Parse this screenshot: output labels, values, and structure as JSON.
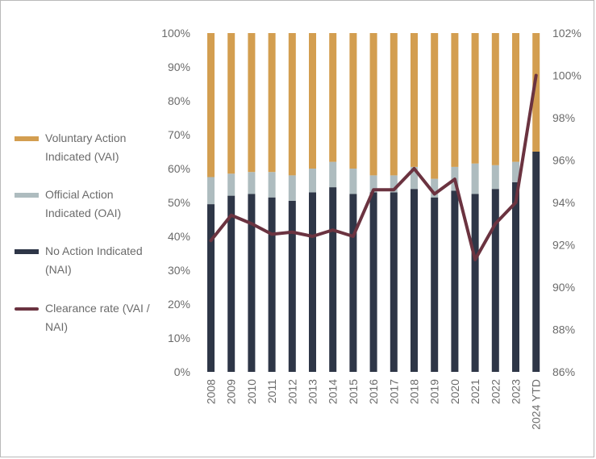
{
  "chart_data": {
    "type": "bar",
    "stacked": true,
    "categories": [
      "2008",
      "2009",
      "2010",
      "2011",
      "2012",
      "2013",
      "2014",
      "2015",
      "2016",
      "2017",
      "2018",
      "2019",
      "2020",
      "2021",
      "2022",
      "2023",
      "2024 YTD"
    ],
    "series": [
      {
        "name": "No Action Indicated (NAI)",
        "color": "#2e3647",
        "values": [
          49.5,
          52,
          52.5,
          51.5,
          50.5,
          53,
          54.5,
          52.5,
          53,
          53,
          54,
          51.5,
          53.5,
          52.5,
          54,
          56,
          65
        ]
      },
      {
        "name": "Official Action Indicated (OAI)",
        "color": "#aebcbf",
        "values": [
          8,
          6.5,
          6.5,
          7.5,
          7.5,
          7,
          7.5,
          7.5,
          5,
          5,
          6.5,
          5.5,
          7,
          9,
          7,
          6,
          0
        ]
      },
      {
        "name": "Voluntary Action Indicated (VAI)",
        "color": "#d39e50",
        "values": [
          42.5,
          41.5,
          41,
          41,
          42,
          40,
          38,
          40,
          42,
          42,
          39.5,
          43,
          39.5,
          38.5,
          39,
          38,
          35
        ]
      }
    ],
    "line_series": {
      "name": "Clearance rate (VAI / NAI)",
      "color": "#6b3340",
      "axis": "right",
      "values": [
        92.2,
        93.4,
        93.0,
        92.5,
        92.6,
        92.4,
        92.7,
        92.4,
        94.6,
        94.6,
        95.6,
        94.4,
        95.1,
        91.3,
        93.0,
        94.0,
        100.0
      ]
    },
    "y_left": {
      "min": 0,
      "max": 100,
      "step": 10,
      "tick_labels": [
        "0%",
        "10%",
        "20%",
        "30%",
        "40%",
        "50%",
        "60%",
        "70%",
        "80%",
        "90%",
        "100%"
      ]
    },
    "y_right": {
      "min": 86,
      "max": 102,
      "step": 2,
      "tick_labels": [
        "86%",
        "88%",
        "90%",
        "92%",
        "94%",
        "96%",
        "98%",
        "100%",
        "102%"
      ]
    },
    "legend": {
      "position": "left",
      "items": [
        {
          "lines": [
            "Voluntary Action",
            "Indicated (VAI)"
          ],
          "color": "#d39e50",
          "kind": "bar"
        },
        {
          "lines": [
            "Official Action",
            "Indicated (OAI)"
          ],
          "color": "#aebcbf",
          "kind": "bar"
        },
        {
          "lines": [
            "No Action Indicated",
            "(NAI)"
          ],
          "color": "#2e3647",
          "kind": "bar"
        },
        {
          "lines": [
            "Clearance rate (VAI /",
            "NAI)"
          ],
          "color": "#6b3340",
          "kind": "line"
        }
      ]
    },
    "grid": false
  }
}
